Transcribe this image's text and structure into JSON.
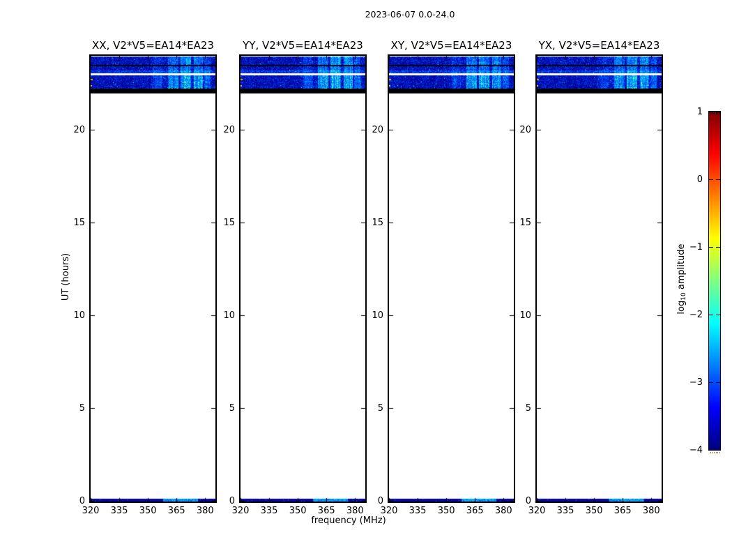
{
  "figure": {
    "title": "2023-06-07 0.0-24.0",
    "background": "#ffffff"
  },
  "axes": {
    "xlabel": "frequency (MHz)",
    "ylabel": "UT (hours)",
    "x_range": [
      320,
      385
    ],
    "y_range": [
      0,
      24
    ],
    "xticks": [
      {
        "label": "320",
        "value": 320
      },
      {
        "label": "335",
        "value": 335
      },
      {
        "label": "350",
        "value": 350
      },
      {
        "label": "365",
        "value": 365
      },
      {
        "label": "380",
        "value": 380
      }
    ],
    "yticks": [
      {
        "label": "0",
        "value": 0
      },
      {
        "label": "5",
        "value": 5
      },
      {
        "label": "10",
        "value": 10
      },
      {
        "label": "15",
        "value": 15
      },
      {
        "label": "20",
        "value": 20
      }
    ]
  },
  "panels": [
    {
      "id": "XX",
      "title": "XX, V2*V5=EA14*EA23",
      "seed": 101,
      "gain": 1.0
    },
    {
      "id": "YY",
      "title": "YY, V2*V5=EA14*EA23",
      "seed": 202,
      "gain": 1.15
    },
    {
      "id": "XY",
      "title": "XY, V2*V5=EA14*EA23",
      "seed": 303,
      "gain": 0.95
    },
    {
      "id": "YX",
      "title": "YX, V2*V5=EA14*EA23",
      "seed": 404,
      "gain": 1.0
    }
  ],
  "colorbar": {
    "label_prefix": "log",
    "label_sub": "10",
    "label_suffix": " amplitude",
    "range": [
      -4,
      1
    ],
    "colormap": "jet",
    "gradient_top_to_bottom": [
      "#7f0000",
      "#ff0000",
      "#ffff00",
      "#00ffff",
      "#0000ff",
      "#00007f"
    ],
    "ticks": [
      {
        "label": "1",
        "value": 1
      },
      {
        "label": "0",
        "value": 0
      },
      {
        "label": "−1",
        "value": -1
      },
      {
        "label": "−2",
        "value": -2
      },
      {
        "label": "−3",
        "value": -3
      },
      {
        "label": "−4",
        "value": -4
      }
    ]
  },
  "spectrogram": {
    "bands": [
      {
        "type": "noise",
        "rowStart": 1,
        "rowEnd": 13,
        "intensity": 0.7
      },
      {
        "type": "solid",
        "rowStart": 13,
        "rowEnd": 15,
        "color": "#000008"
      },
      {
        "type": "noise",
        "rowStart": 15,
        "rowEnd": 25,
        "intensity": 0.65,
        "streak": true
      },
      {
        "type": "solid",
        "rowStart": 25,
        "rowEnd": 28,
        "color": "#ffffff"
      },
      {
        "type": "noise",
        "rowStart": 28,
        "rowEnd": 47,
        "intensity": 1.0
      },
      {
        "type": "solid",
        "rowStart": 47,
        "rowEnd": 54,
        "color": "#000000"
      },
      {
        "type": "noise_bottom",
        "rowStart": 635,
        "rowEnd": 639,
        "cyanFrom": 0.58,
        "cyanTo": 0.86
      }
    ],
    "stripes": [
      {
        "from": 0.5,
        "to": 0.575,
        "amp": 0.35
      },
      {
        "from": 0.615,
        "to": 0.7,
        "amp": 0.8
      },
      {
        "from": 0.72,
        "to": 0.8,
        "amp": 1.0
      },
      {
        "from": 0.825,
        "to": 0.895,
        "amp": 0.9
      },
      {
        "from": 0.91,
        "to": 0.96,
        "amp": 0.55
      }
    ],
    "marks": [
      {
        "row": 33,
        "col": 0,
        "width": 3,
        "height": 2,
        "color": "#f0a000"
      },
      {
        "row": 42,
        "col": 0,
        "width": 2,
        "height": 2,
        "color": "#ffd24d"
      },
      {
        "row": 20,
        "col": 70,
        "width": 1,
        "height": 1,
        "color": "#ffff99"
      }
    ]
  },
  "chart_data": {
    "type": "heatmap",
    "title": "2023-06-07 0.0-24.0",
    "subplots": [
      "XX, V2*V5=EA14*EA23",
      "YY, V2*V5=EA14*EA23",
      "XY, V2*V5=EA14*EA23",
      "YX, V2*V5=EA14*EA23"
    ],
    "xlabel": "frequency (MHz)",
    "ylabel": "UT (hours)",
    "xlim": [
      320,
      385
    ],
    "ylim": [
      0,
      24
    ],
    "xticks": [
      320,
      335,
      350,
      365,
      380
    ],
    "yticks": [
      0,
      5,
      10,
      15,
      20
    ],
    "colorbar_label": "log10 amplitude",
    "colorbar_ticks": [
      1,
      0,
      -1,
      -2,
      -3,
      -4
    ],
    "colormap": "jet",
    "features": {
      "data_intervals_ut": [
        [
          22.05,
          24.0
        ],
        [
          0.0,
          0.15
        ]
      ],
      "noise_sub_bands_ut": [
        [
          23.55,
          24.0
        ],
        [
          23.2,
          23.5
        ],
        [
          22.3,
          23.05
        ]
      ],
      "white_gap_line_ut": 23.1,
      "saturated_black_band_ut": [
        22.05,
        22.3
      ],
      "rfi_bright_stripes_mhz": [
        [
          353,
          357
        ],
        [
          360,
          365
        ],
        [
          367,
          372
        ],
        [
          374,
          378
        ],
        [
          379,
          382
        ]
      ],
      "typical_background_log10_amplitude": -3.3,
      "typical_rfi_log10_amplitude": -2.0
    }
  }
}
